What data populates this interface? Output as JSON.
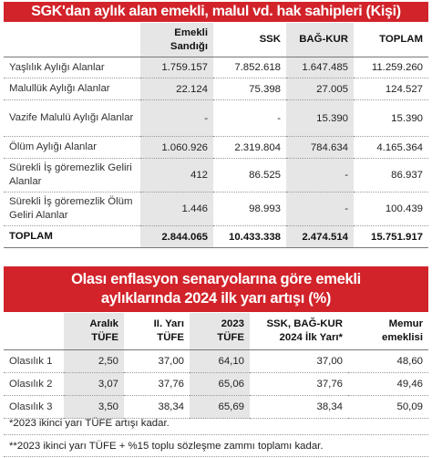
{
  "table1": {
    "title": "SGK'dan aylık alan emekli, malul vd. hak sahipleri (Kişi)",
    "headers": [
      "",
      "Emekli Sandığı",
      "SSK",
      "BAĞ-KUR",
      "TOPLAM"
    ],
    "rows": [
      [
        "Yaşlılık Aylığı Alanlar",
        "1.759.157",
        "7.852.618",
        "1.647.485",
        "11.259.260"
      ],
      [
        "Malullük Aylığı Alanlar",
        "22.124",
        "75.398",
        "27.005",
        "124.527"
      ],
      [
        "Vazife Malulü Aylığı Alanlar",
        "-",
        "-",
        "15.390",
        "15.390"
      ],
      [
        "Ölüm Aylığı Alanlar",
        "1.060.926",
        "2.319.804",
        "784.634",
        "4.165.364"
      ],
      [
        "Sürekli İş göremezlik Geliri Alanlar",
        "412",
        "86.525",
        "-",
        "86.937"
      ],
      [
        "Sürekli İş göremezlik Ölüm Geliri Alanlar",
        "1.446",
        "98.993",
        "-",
        "100.439"
      ]
    ],
    "total": [
      "TOPLAM",
      "2.844.065",
      "10.433.338",
      "2.474.514",
      "15.751.917"
    ]
  },
  "table2": {
    "title_line1": "Olası enflasyon senaryolarına göre emekli",
    "title_line2": "aylıklarında 2024 ilk yarı artışı (%)",
    "headers": [
      "",
      "Aralık TÜFE",
      "II. Yarı TÜFE",
      "2023 TÜFE",
      "SSK, BAĞ-KUR 2024 İlk Yarı*",
      "Memur emeklisi"
    ],
    "rows": [
      [
        "Olasılık 1",
        "2,50",
        "37,00",
        "64,10",
        "37,00",
        "48,60"
      ],
      [
        "Olasılık 2",
        "3,07",
        "37,76",
        "65,06",
        "37,76",
        "49,46"
      ],
      [
        "Olasılık 3",
        "3,50",
        "38,34",
        "65,69",
        "38,34",
        "50,09"
      ]
    ]
  },
  "notes": [
    "*2023 ikinci yarı TÜFE artışı kadar.",
    "**2023 ikinci yarı TÜFE + %15 toplu sözleşme zammı toplamı kadar."
  ]
}
